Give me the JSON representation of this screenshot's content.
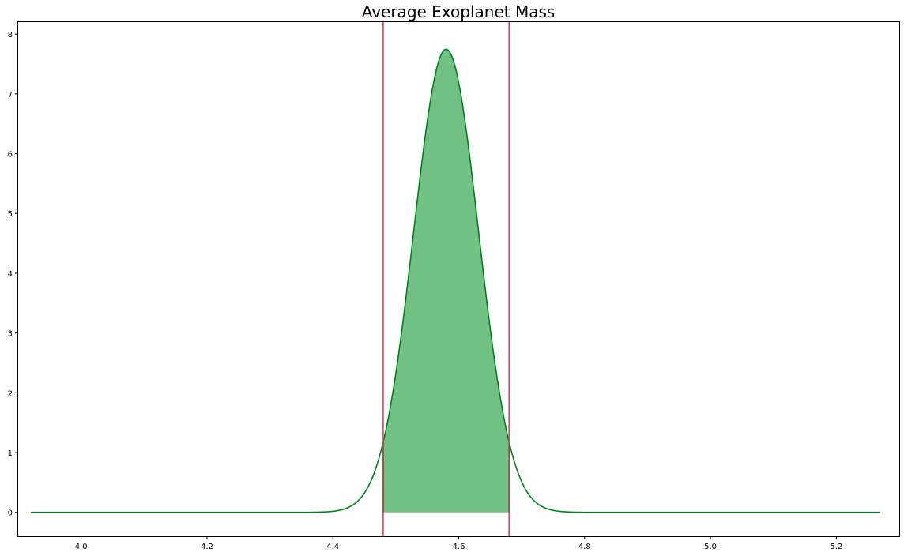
{
  "chart_data": {
    "type": "area",
    "title": "Average Exoplanet Mass",
    "xlabel": "",
    "ylabel": "",
    "xlim": [
      3.9,
      5.3
    ],
    "ylim": [
      -0.4,
      8.2
    ],
    "xticks": [
      4.0,
      4.2,
      4.4,
      4.6,
      4.8,
      5.0,
      5.2
    ],
    "xtick_labels": [
      "4.0",
      "4.2",
      "4.4",
      "4.6",
      "4.8",
      "5.0",
      "5.2"
    ],
    "yticks": [
      0,
      1,
      2,
      3,
      4,
      5,
      6,
      7,
      8
    ],
    "ytick_labels": [
      "0",
      "1",
      "2",
      "3",
      "4",
      "5",
      "6",
      "7",
      "8"
    ],
    "grid": false,
    "series": [
      {
        "kind": "density-curve",
        "color": "#008020",
        "mean": 4.58,
        "sd": 0.0515,
        "x_range": [
          3.92,
          5.27
        ]
      }
    ],
    "shaded_interval": {
      "from": 4.48,
      "to": 4.68,
      "color": "#72c184"
    },
    "vertical_lines": [
      {
        "x": 4.48,
        "color": "#e0405f"
      },
      {
        "x": 4.68,
        "color": "#e0405f"
      }
    ]
  }
}
